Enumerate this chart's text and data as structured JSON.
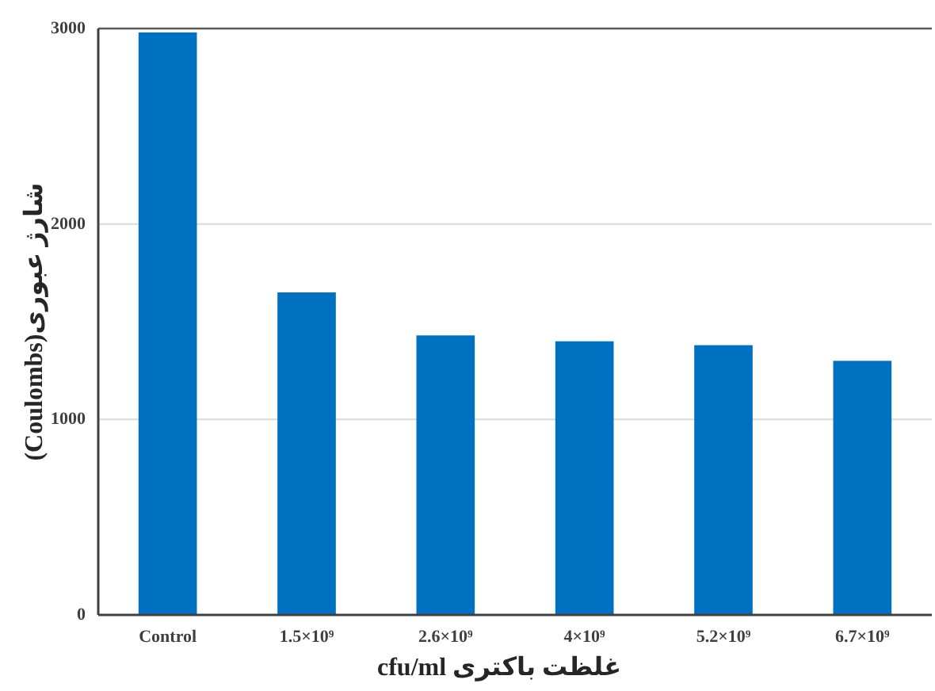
{
  "chart_data": {
    "type": "bar",
    "xlabel": "غلظت باکتری cfu/ml",
    "ylabel": "(Coulombs)شارژ عبوری",
    "categories": [
      "Control",
      "1.5×10⁹",
      "2.6×10⁹",
      "4×10⁹",
      "5.2×10⁹",
      "6.7×10⁹"
    ],
    "values": [
      2980,
      1650,
      1430,
      1400,
      1380,
      1300
    ],
    "color": "#0070c0",
    "ylim": [
      0,
      3000
    ],
    "yticks": [
      0,
      1000,
      2000,
      3000
    ],
    "grid": "y"
  }
}
